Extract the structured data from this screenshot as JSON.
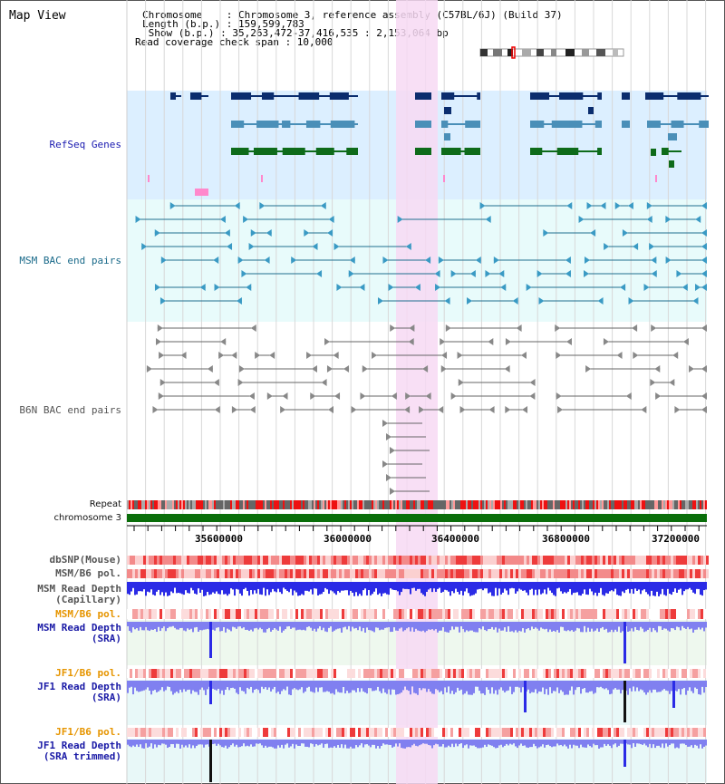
{
  "header": {
    "title": "Map View",
    "lines": [
      "Chromosome    : Chromosome 3, reference assembly (C57BL/6J) (Build 37)",
      "Length (b.p.) : 159,599,783",
      " Show (b.p.) : 35,263,472-37,416,535 : 2,153,064 bp",
      "Read coverage check span : 10,000"
    ]
  },
  "tracks": {
    "refseq_genes": "RefSeq Genes",
    "msm_bac": "MSM BAC end pairs",
    "b6n_bac": "B6N BAC end pairs",
    "repeat": "Repeat",
    "chromosome": "chromosome 3",
    "dbsnp": "dbSNP(Mouse)",
    "msm_b6_pol": "MSM/B6 pol.",
    "msm_depth_cap_1": "MSM Read Depth",
    "msm_depth_cap_2": "(Capillary)",
    "msm_b6_pol2": "MSM/B6 pol.",
    "msm_depth_sra_1": "MSM Read Depth",
    "msm_depth_sra_2": "(SRA)",
    "jf1_b6_pol": "JF1/B6 pol.",
    "jf1_depth_sra_1": "JF1 Read Depth",
    "jf1_depth_sra_2": "(SRA)",
    "jf1_b6_pol2": "JF1/B6 pol.",
    "jf1_depth_trim_1": "JF1 Read Depth",
    "jf1_depth_trim_2": "(SRA trimmed)"
  },
  "axis": {
    "ticks": [
      "35600000",
      "36000000",
      "36400000",
      "36800000",
      "37200000"
    ]
  },
  "colors": {
    "refseq_bg": "#dcefff",
    "msm_bg": "#e8fbfb",
    "highlight": "#f7d9f3",
    "navy": "#0b2d6e",
    "steel": "#4a8fb8",
    "green": "#0e6b1a",
    "teal_line": "#1f6f8f",
    "gray_line": "#666666",
    "chrom_green": "#0a6e0a",
    "depth_blue": "#2b2be6",
    "depth_light": "#8080f0",
    "pol_red": "#ee3b3b"
  }
}
